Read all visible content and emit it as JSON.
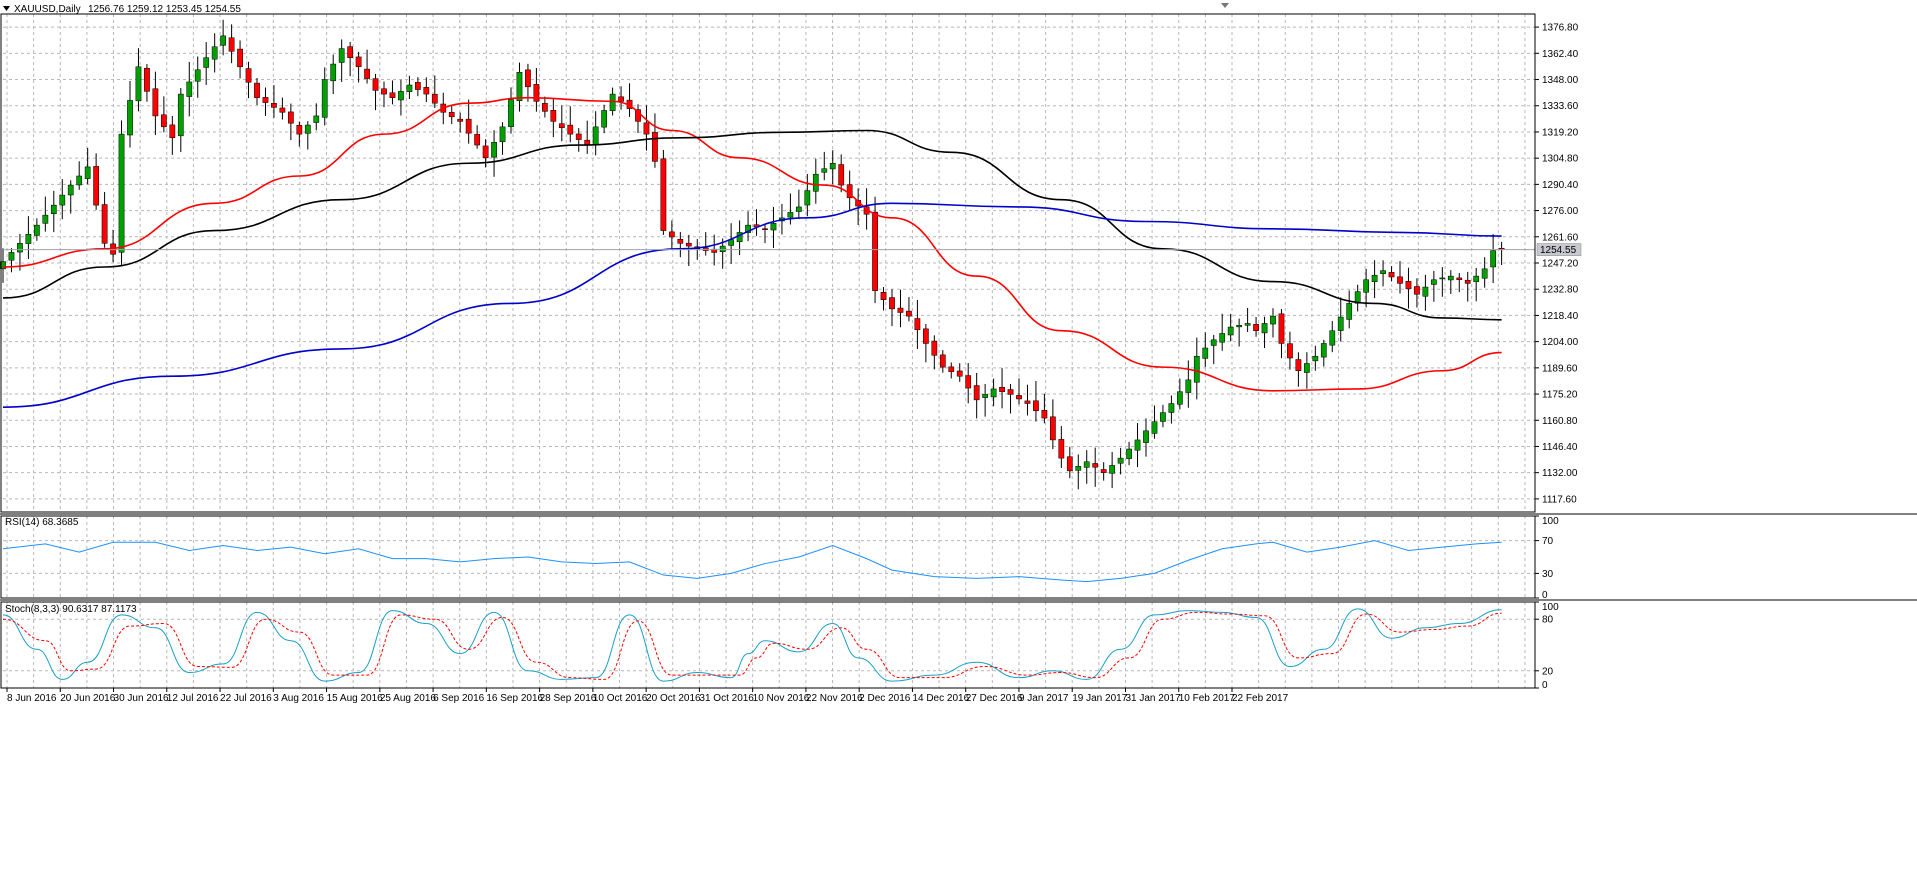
{
  "chart_data": [
    {
      "type": "candlestick",
      "title": "XAUUSD,Daily",
      "ohlc_readout": "1256.76 1259.12 1253.45 1254.55",
      "current_price": 1254.55,
      "current_price_label": "1254.55",
      "ylim": [
        1110.4,
        1384.0
      ],
      "y_ticks": [
        "1376.80",
        "1362.40",
        "1348.00",
        "1333.60",
        "1319.20",
        "1304.80",
        "1290.40",
        "1276.00",
        "1261.60",
        "1247.20",
        "1232.80",
        "1218.40",
        "1204.00",
        "1189.60",
        "1175.20",
        "1160.80",
        "1146.40",
        "1132.00",
        "1117.60"
      ],
      "x_ticks": [
        "8 Jun 2016",
        "20 Jun 2016",
        "30 Jun 2016",
        "12 Jul 2016",
        "22 Jul 2016",
        "3 Aug 2016",
        "15 Aug 2016",
        "25 Aug 2016",
        "6 Sep 2016",
        "16 Sep 2016",
        "28 Sep 2016",
        "10 Oct 2016",
        "20 Oct 2016",
        "31 Oct 2016",
        "10 Nov 2016",
        "22 Nov 2016",
        "2 Dec 2016",
        "14 Dec 2016",
        "27 Dec 2016",
        "9 Jan 2017",
        "19 Jan 2017",
        "31 Jan 2017",
        "10 Feb 2017",
        "22 Feb 2017"
      ],
      "close_path": [
        [
          0,
          1248
        ],
        [
          4,
          1268
        ],
        [
          8,
          1290
        ],
        [
          10,
          1300
        ],
        [
          12,
          1258
        ],
        [
          13,
          1252
        ],
        [
          14,
          1318
        ],
        [
          16,
          1355
        ],
        [
          18,
          1328
        ],
        [
          20,
          1316
        ],
        [
          21,
          1340
        ],
        [
          24,
          1360
        ],
        [
          26,
          1372
        ],
        [
          28,
          1355
        ],
        [
          30,
          1338
        ],
        [
          33,
          1330
        ],
        [
          35,
          1318
        ],
        [
          37,
          1328
        ],
        [
          38,
          1348
        ],
        [
          40,
          1365
        ],
        [
          42,
          1355
        ],
        [
          44,
          1342
        ],
        [
          46,
          1338
        ],
        [
          48,
          1345
        ],
        [
          50,
          1340
        ],
        [
          52,
          1330
        ],
        [
          54,
          1325
        ],
        [
          56,
          1312
        ],
        [
          57,
          1305
        ],
        [
          59,
          1322
        ],
        [
          61,
          1352
        ],
        [
          63,
          1336
        ],
        [
          65,
          1325
        ],
        [
          67,
          1318
        ],
        [
          69,
          1312
        ],
        [
          70,
          1322
        ],
        [
          72,
          1340
        ],
        [
          74,
          1332
        ],
        [
          76,
          1318
        ],
        [
          77,
          1303
        ],
        [
          78,
          1265
        ],
        [
          80,
          1258
        ],
        [
          82,
          1255
        ],
        [
          84,
          1253
        ],
        [
          86,
          1260
        ],
        [
          88,
          1268
        ],
        [
          90,
          1266
        ],
        [
          92,
          1272
        ],
        [
          94,
          1278
        ],
        [
          96,
          1296
        ],
        [
          98,
          1302
        ],
        [
          99,
          1290
        ],
        [
          100,
          1283
        ],
        [
          102,
          1274
        ],
        [
          103,
          1232
        ],
        [
          105,
          1222
        ],
        [
          107,
          1218
        ],
        [
          109,
          1203
        ],
        [
          111,
          1190
        ],
        [
          113,
          1185
        ],
        [
          115,
          1172
        ],
        [
          117,
          1178
        ],
        [
          119,
          1175
        ],
        [
          121,
          1170
        ],
        [
          123,
          1162
        ],
        [
          124,
          1150
        ],
        [
          125,
          1140
        ],
        [
          126,
          1133
        ],
        [
          128,
          1138
        ],
        [
          130,
          1132
        ],
        [
          132,
          1140
        ],
        [
          134,
          1150
        ],
        [
          136,
          1160
        ],
        [
          138,
          1170
        ],
        [
          140,
          1183
        ],
        [
          141,
          1196
        ],
        [
          143,
          1205
        ],
        [
          145,
          1212
        ],
        [
          147,
          1214
        ],
        [
          148,
          1210
        ],
        [
          150,
          1218
        ],
        [
          151,
          1203
        ],
        [
          152,
          1195
        ],
        [
          153,
          1188
        ],
        [
          155,
          1196
        ],
        [
          157,
          1210
        ],
        [
          159,
          1225
        ],
        [
          161,
          1238
        ],
        [
          163,
          1243
        ],
        [
          165,
          1236
        ],
        [
          167,
          1230
        ],
        [
          169,
          1238
        ],
        [
          171,
          1240
        ],
        [
          173,
          1236
        ],
        [
          175,
          1244
        ],
        [
          176,
          1254
        ],
        [
          177,
          1254.55
        ]
      ],
      "series": [
        {
          "indicator": "moving-average",
          "color": "#ff0000",
          "values": [
            [
              0,
              1245
            ],
            [
              12,
              1255
            ],
            [
              25,
              1280
            ],
            [
              35,
              1295
            ],
            [
              45,
              1318
            ],
            [
              55,
              1335
            ],
            [
              62,
              1338
            ],
            [
              72,
              1336
            ],
            [
              79,
              1320
            ],
            [
              87,
              1305
            ],
            [
              97,
              1290
            ],
            [
              105,
              1272
            ],
            [
              115,
              1240
            ],
            [
              125,
              1210
            ],
            [
              137,
              1190
            ],
            [
              150,
              1177
            ],
            [
              160,
              1178
            ],
            [
              170,
              1188
            ],
            [
              177,
              1198
            ]
          ]
        },
        {
          "indicator": "moving-average",
          "color": "#000000",
          "values": [
            [
              0,
              1228
            ],
            [
              12,
              1245
            ],
            [
              25,
              1265
            ],
            [
              40,
              1282
            ],
            [
              55,
              1302
            ],
            [
              68,
              1312
            ],
            [
              80,
              1316
            ],
            [
              92,
              1319
            ],
            [
              102,
              1320
            ],
            [
              112,
              1308
            ],
            [
              125,
              1282
            ],
            [
              137,
              1255
            ],
            [
              150,
              1237
            ],
            [
              162,
              1225
            ],
            [
              170,
              1217
            ],
            [
              177,
              1216
            ]
          ]
        },
        {
          "indicator": "moving-average",
          "color": "#0000cc",
          "values": [
            [
              0,
              1168
            ],
            [
              20,
              1185
            ],
            [
              40,
              1200
            ],
            [
              60,
              1225
            ],
            [
              80,
              1255
            ],
            [
              95,
              1272
            ],
            [
              105,
              1280
            ],
            [
              120,
              1278
            ],
            [
              135,
              1270
            ],
            [
              150,
              1266
            ],
            [
              165,
              1264
            ],
            [
              177,
              1262
            ]
          ]
        }
      ]
    },
    {
      "type": "line",
      "title": "RSI(14) 68.3685",
      "ylim": [
        0,
        100
      ],
      "y_ticks": [
        "100",
        "70",
        "30",
        "0"
      ],
      "levels": [
        70,
        30
      ],
      "color": "#1e90ff",
      "values": [
        [
          0,
          60
        ],
        [
          5,
          66
        ],
        [
          9,
          56
        ],
        [
          13,
          68
        ],
        [
          18,
          68
        ],
        [
          22,
          58
        ],
        [
          26,
          64
        ],
        [
          30,
          58
        ],
        [
          34,
          62
        ],
        [
          38,
          54
        ],
        [
          42,
          60
        ],
        [
          46,
          48
        ],
        [
          50,
          48
        ],
        [
          54,
          44
        ],
        [
          58,
          48
        ],
        [
          62,
          50
        ],
        [
          66,
          44
        ],
        [
          70,
          42
        ],
        [
          74,
          44
        ],
        [
          78,
          28
        ],
        [
          82,
          24
        ],
        [
          86,
          30
        ],
        [
          90,
          42
        ],
        [
          94,
          50
        ],
        [
          98,
          64
        ],
        [
          102,
          48
        ],
        [
          105,
          34
        ],
        [
          110,
          26
        ],
        [
          115,
          24
        ],
        [
          120,
          26
        ],
        [
          125,
          22
        ],
        [
          128,
          20
        ],
        [
          132,
          24
        ],
        [
          136,
          30
        ],
        [
          140,
          46
        ],
        [
          144,
          60
        ],
        [
          148,
          66
        ],
        [
          150,
          68
        ],
        [
          154,
          56
        ],
        [
          158,
          62
        ],
        [
          162,
          70
        ],
        [
          166,
          58
        ],
        [
          170,
          62
        ],
        [
          174,
          66
        ],
        [
          177,
          68
        ]
      ]
    },
    {
      "type": "line",
      "title": "Stoch(8,3,3) 90.6317 87.1173",
      "ylim": [
        0,
        100
      ],
      "y_ticks": [
        "100",
        "80",
        "20",
        "0"
      ],
      "levels": [
        80,
        20
      ],
      "series": [
        {
          "color": "#1aa0c8",
          "values": [
            [
              0,
              85
            ],
            [
              4,
              45
            ],
            [
              7,
              10
            ],
            [
              10,
              30
            ],
            [
              14,
              85
            ],
            [
              18,
              70
            ],
            [
              22,
              18
            ],
            [
              26,
              28
            ],
            [
              30,
              88
            ],
            [
              34,
              55
            ],
            [
              38,
              8
            ],
            [
              42,
              18
            ],
            [
              46,
              90
            ],
            [
              50,
              75
            ],
            [
              54,
              40
            ],
            [
              58,
              88
            ],
            [
              62,
              20
            ],
            [
              66,
              10
            ],
            [
              70,
              12
            ],
            [
              74,
              85
            ],
            [
              78,
              8
            ],
            [
              82,
              18
            ],
            [
              86,
              12
            ],
            [
              88,
              40
            ],
            [
              90,
              55
            ],
            [
              94,
              42
            ],
            [
              98,
              75
            ],
            [
              101,
              35
            ],
            [
              105,
              8
            ],
            [
              110,
              15
            ],
            [
              115,
              30
            ],
            [
              120,
              12
            ],
            [
              124,
              20
            ],
            [
              128,
              10
            ],
            [
              132,
              45
            ],
            [
              136,
              85
            ],
            [
              140,
              90
            ],
            [
              144,
              88
            ],
            [
              148,
              82
            ],
            [
              152,
              25
            ],
            [
              156,
              45
            ],
            [
              160,
              92
            ],
            [
              164,
              58
            ],
            [
              168,
              70
            ],
            [
              172,
              75
            ],
            [
              177,
              91
            ]
          ]
        },
        {
          "color": "#ff0000",
          "dashed": true,
          "values": [
            [
              0,
              80
            ],
            [
              5,
              55
            ],
            [
              8,
              20
            ],
            [
              11,
              22
            ],
            [
              15,
              72
            ],
            [
              19,
              75
            ],
            [
              23,
              25
            ],
            [
              27,
              24
            ],
            [
              31,
              80
            ],
            [
              35,
              65
            ],
            [
              39,
              15
            ],
            [
              43,
              15
            ],
            [
              47,
              85
            ],
            [
              51,
              80
            ],
            [
              55,
              45
            ],
            [
              59,
              82
            ],
            [
              63,
              30
            ],
            [
              67,
              12
            ],
            [
              71,
              10
            ],
            [
              75,
              78
            ],
            [
              79,
              15
            ],
            [
              83,
              15
            ],
            [
              87,
              15
            ],
            [
              89,
              35
            ],
            [
              91,
              52
            ],
            [
              95,
              45
            ],
            [
              99,
              70
            ],
            [
              102,
              45
            ],
            [
              106,
              12
            ],
            [
              111,
              12
            ],
            [
              116,
              25
            ],
            [
              121,
              15
            ],
            [
              125,
              18
            ],
            [
              129,
              12
            ],
            [
              133,
              35
            ],
            [
              137,
              80
            ],
            [
              141,
              88
            ],
            [
              145,
              86
            ],
            [
              149,
              84
            ],
            [
              153,
              35
            ],
            [
              157,
              40
            ],
            [
              161,
              86
            ],
            [
              165,
              65
            ],
            [
              169,
              68
            ],
            [
              173,
              72
            ],
            [
              177,
              87
            ]
          ]
        }
      ]
    }
  ]
}
